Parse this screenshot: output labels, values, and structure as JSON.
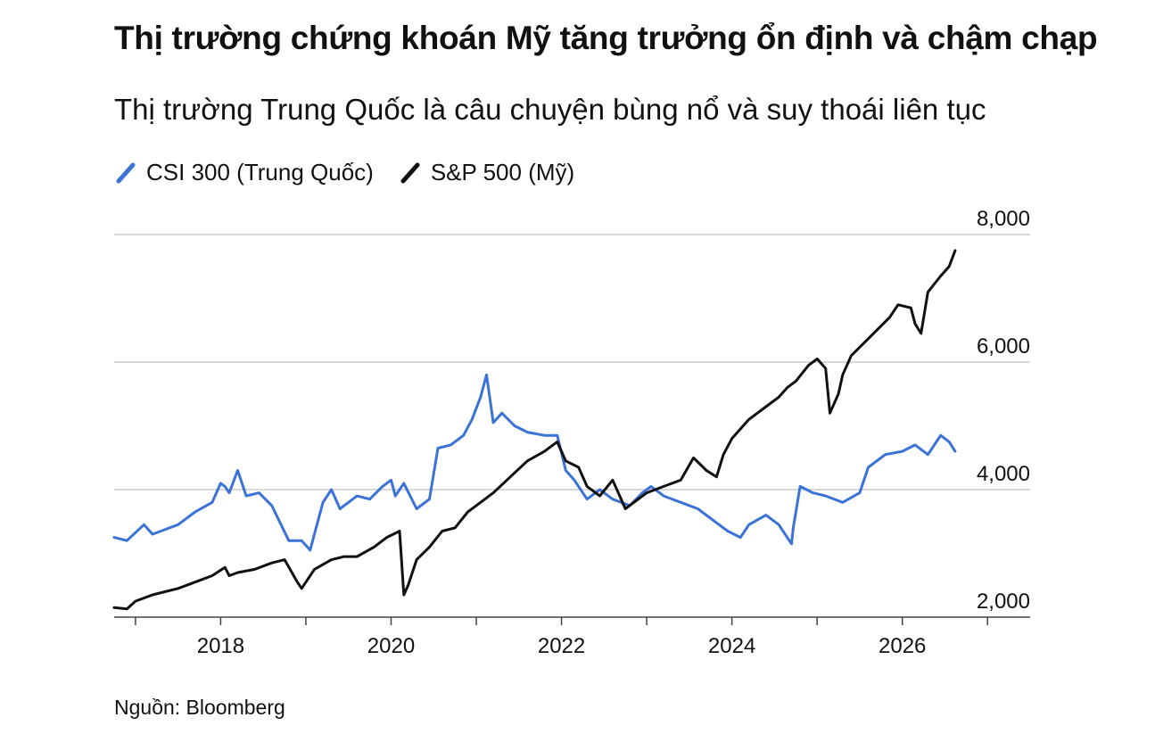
{
  "title": "Thị trường chứng khoán Mỹ tăng trưởng ổn định và chậm chạp",
  "subtitle": "Thị trường Trung Quốc là câu chuyện bùng nổ và suy thoái liên tục",
  "source": "Nguồn: Bloomberg",
  "colors": {
    "csi": "#3a72d6",
    "spx": "#111111",
    "grid": "#cccccc"
  },
  "chart_data": {
    "type": "line",
    "xlabel": "",
    "ylabel": "",
    "xlim": [
      2016.75,
      2027.5
    ],
    "ylim": [
      2000,
      8000
    ],
    "x_ticks": [
      2018,
      2020,
      2022,
      2024,
      2026
    ],
    "x_tick_labels": [
      "2018",
      "2020",
      "2022",
      "2024",
      "2026"
    ],
    "y_ticks": [
      2000,
      4000,
      6000,
      8000
    ],
    "y_tick_labels": [
      "2,000",
      "4,000",
      "6,000",
      "8,000"
    ],
    "y_axis_side": "right",
    "grid": "horizontal",
    "legend_placement": "top-left",
    "series": [
      {
        "name": "CSI 300 (Trung Quốc)",
        "color": "#3a72d6",
        "x": [
          2016.75,
          2016.9,
          2017.1,
          2017.2,
          2017.3,
          2017.5,
          2017.7,
          2017.9,
          2018.0,
          2018.05,
          2018.1,
          2018.2,
          2018.3,
          2018.45,
          2018.6,
          2018.8,
          2018.95,
          2019.05,
          2019.2,
          2019.3,
          2019.4,
          2019.6,
          2019.75,
          2019.9,
          2020.0,
          2020.05,
          2020.15,
          2020.3,
          2020.45,
          2020.55,
          2020.7,
          2020.85,
          2020.95,
          2021.05,
          2021.12,
          2021.2,
          2021.3,
          2021.45,
          2021.6,
          2021.8,
          2021.95,
          2022.05,
          2022.15,
          2022.3,
          2022.45,
          2022.6,
          2022.8,
          2022.95,
          2023.05,
          2023.2,
          2023.4,
          2023.6,
          2023.8,
          2023.95,
          2024.1,
          2024.2,
          2024.4,
          2024.55,
          2024.7,
          2024.72,
          2024.8,
          2024.95,
          2025.1,
          2025.3,
          2025.5,
          2025.6,
          2025.8,
          2026.0,
          2026.15,
          2026.3,
          2026.45,
          2026.55,
          2026.62
        ],
        "values": [
          3250,
          3200,
          3450,
          3300,
          3350,
          3450,
          3650,
          3800,
          4100,
          4050,
          3950,
          4300,
          3900,
          3950,
          3750,
          3200,
          3200,
          3050,
          3800,
          4000,
          3700,
          3900,
          3850,
          4050,
          4150,
          3900,
          4100,
          3700,
          3850,
          4650,
          4700,
          4850,
          5100,
          5450,
          5800,
          5050,
          5200,
          5000,
          4900,
          4850,
          4850,
          4300,
          4150,
          3850,
          4000,
          3850,
          3750,
          3950,
          4050,
          3900,
          3800,
          3700,
          3500,
          3350,
          3250,
          3450,
          3600,
          3450,
          3150,
          3400,
          4050,
          3950,
          3900,
          3800,
          3950,
          4350,
          4550,
          4600,
          4700,
          4550,
          4850,
          4750,
          4600
        ]
      },
      {
        "name": "S&P 500 (Mỹ)",
        "color": "#111111",
        "x": [
          2016.75,
          2016.9,
          2017.0,
          2017.2,
          2017.5,
          2017.7,
          2017.9,
          2018.05,
          2018.1,
          2018.2,
          2018.4,
          2018.6,
          2018.75,
          2018.9,
          2018.95,
          2019.1,
          2019.3,
          2019.45,
          2019.6,
          2019.8,
          2019.95,
          2020.1,
          2020.15,
          2020.2,
          2020.3,
          2020.45,
          2020.6,
          2020.75,
          2020.9,
          2021.0,
          2021.2,
          2021.4,
          2021.6,
          2021.8,
          2021.95,
          2022.05,
          2022.2,
          2022.3,
          2022.45,
          2022.6,
          2022.75,
          2022.85,
          2023.0,
          2023.2,
          2023.4,
          2023.55,
          2023.7,
          2023.82,
          2023.9,
          2024.0,
          2024.2,
          2024.4,
          2024.55,
          2024.65,
          2024.75,
          2024.9,
          2025.0,
          2025.1,
          2025.15,
          2025.25,
          2025.3,
          2025.4,
          2025.55,
          2025.7,
          2025.85,
          2025.95,
          2026.1,
          2026.15,
          2026.22,
          2026.3,
          2026.45,
          2026.55,
          2026.62
        ],
        "values": [
          2150,
          2130,
          2250,
          2350,
          2450,
          2550,
          2650,
          2780,
          2650,
          2700,
          2750,
          2850,
          2900,
          2550,
          2450,
          2750,
          2900,
          2950,
          2950,
          3100,
          3250,
          3350,
          2350,
          2500,
          2900,
          3100,
          3350,
          3400,
          3650,
          3750,
          3950,
          4200,
          4450,
          4600,
          4750,
          4450,
          4350,
          4050,
          3900,
          4150,
          3700,
          3800,
          3950,
          4050,
          4150,
          4500,
          4300,
          4200,
          4550,
          4800,
          5100,
          5300,
          5450,
          5600,
          5700,
          5950,
          6050,
          5900,
          5200,
          5500,
          5800,
          6100,
          6300,
          6500,
          6700,
          6900,
          6850,
          6600,
          6450,
          7100,
          7350,
          7500,
          7750
        ]
      }
    ]
  }
}
